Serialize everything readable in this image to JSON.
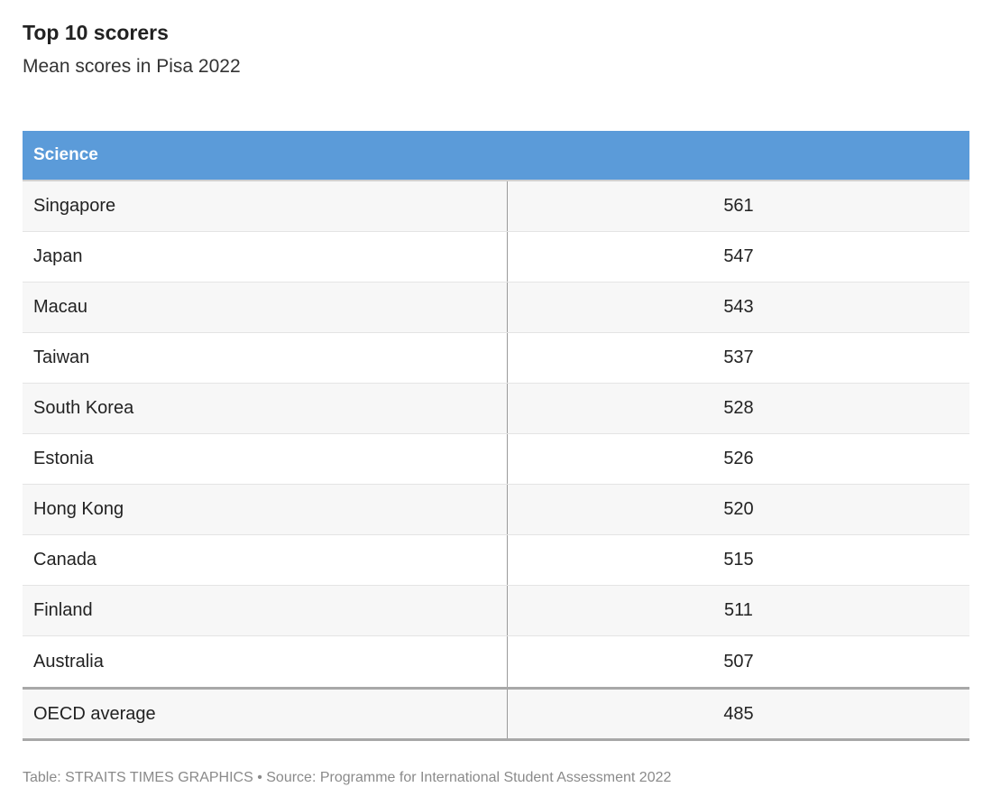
{
  "title": "Top 10 scorers",
  "subtitle": "Mean scores in Pisa 2022",
  "source": "Table: STRAITS TIMES GRAPHICS • Source: Programme for International Student Assessment 2022",
  "colors": {
    "header_bg": "#5b9bd9",
    "header_text": "#ffffff",
    "row_alt": "#f7f7f7"
  },
  "chart_data": {
    "type": "table",
    "title": "Top 10 scorers",
    "subtitle": "Mean scores in Pisa 2022",
    "header": "Science",
    "rows": [
      {
        "name": "Singapore",
        "value": 561
      },
      {
        "name": "Japan",
        "value": 547
      },
      {
        "name": "Macau",
        "value": 543
      },
      {
        "name": "Taiwan",
        "value": 537
      },
      {
        "name": "South Korea",
        "value": 528
      },
      {
        "name": "Estonia",
        "value": 526
      },
      {
        "name": "Hong Kong",
        "value": 520
      },
      {
        "name": "Canada",
        "value": 515
      },
      {
        "name": "Finland",
        "value": 511
      },
      {
        "name": "Australia",
        "value": 507
      }
    ],
    "total": {
      "name": "OECD average",
      "value": 485
    }
  }
}
